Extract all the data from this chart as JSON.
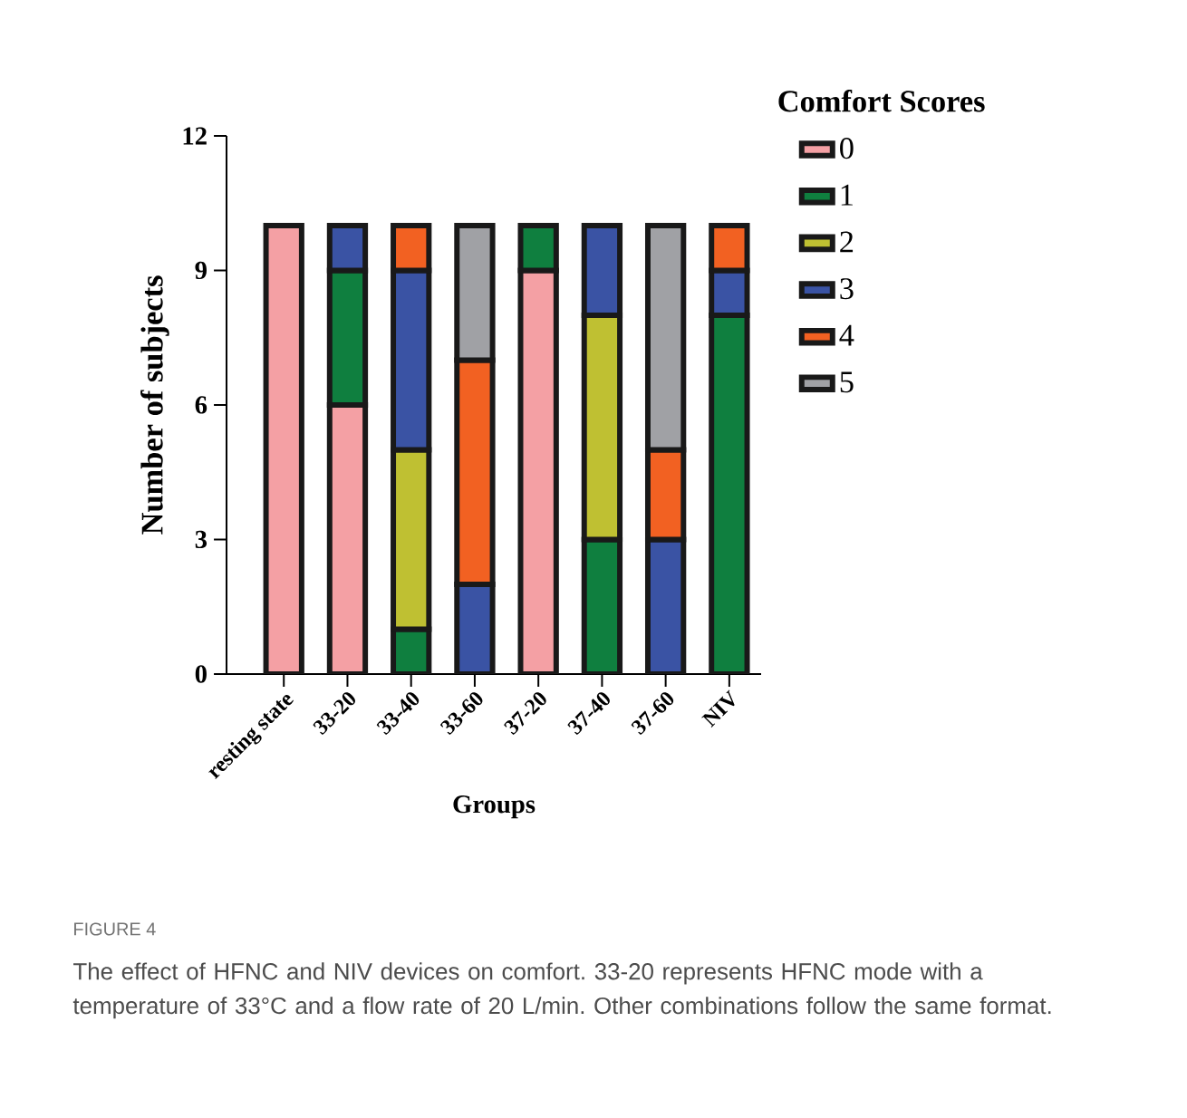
{
  "chart_data": {
    "type": "bar",
    "stacked": true,
    "xlabel": "Groups",
    "ylabel": "Number of subjects",
    "legend_title": "Comfort Scores",
    "legend": "top right",
    "categories": [
      "resting state",
      "33-20",
      "33-40",
      "33-60",
      "37-20",
      "37-40",
      "37-60",
      "NIV"
    ],
    "ylim": [
      0,
      12
    ],
    "yticks": [
      0,
      3,
      6,
      9,
      12
    ],
    "series": [
      {
        "name": "0",
        "color": "#f4a0a4",
        "values": [
          10,
          6,
          0,
          0,
          9,
          0,
          0,
          0
        ]
      },
      {
        "name": "1",
        "color": "#0f7f3f",
        "values": [
          0,
          3,
          1,
          0,
          1,
          3,
          0,
          8
        ]
      },
      {
        "name": "2",
        "color": "#bfc032",
        "values": [
          0,
          0,
          4,
          0,
          0,
          5,
          0,
          0
        ]
      },
      {
        "name": "3",
        "color": "#3a53a4",
        "values": [
          0,
          1,
          4,
          2,
          0,
          2,
          3,
          1
        ]
      },
      {
        "name": "4",
        "color": "#f26122",
        "values": [
          0,
          0,
          1,
          5,
          0,
          0,
          2,
          1
        ]
      },
      {
        "name": "5",
        "color": "#a0a1a5",
        "values": [
          0,
          0,
          0,
          3,
          0,
          0,
          5,
          0
        ]
      }
    ],
    "annotations": [
      "FIGURE 4",
      "The effect of HFNC and NIV devices on comfort. 33-20 represents HFNC mode with a temperature of 33°C and a flow rate of 20 L/min. Other combinations follow the same format."
    ]
  }
}
